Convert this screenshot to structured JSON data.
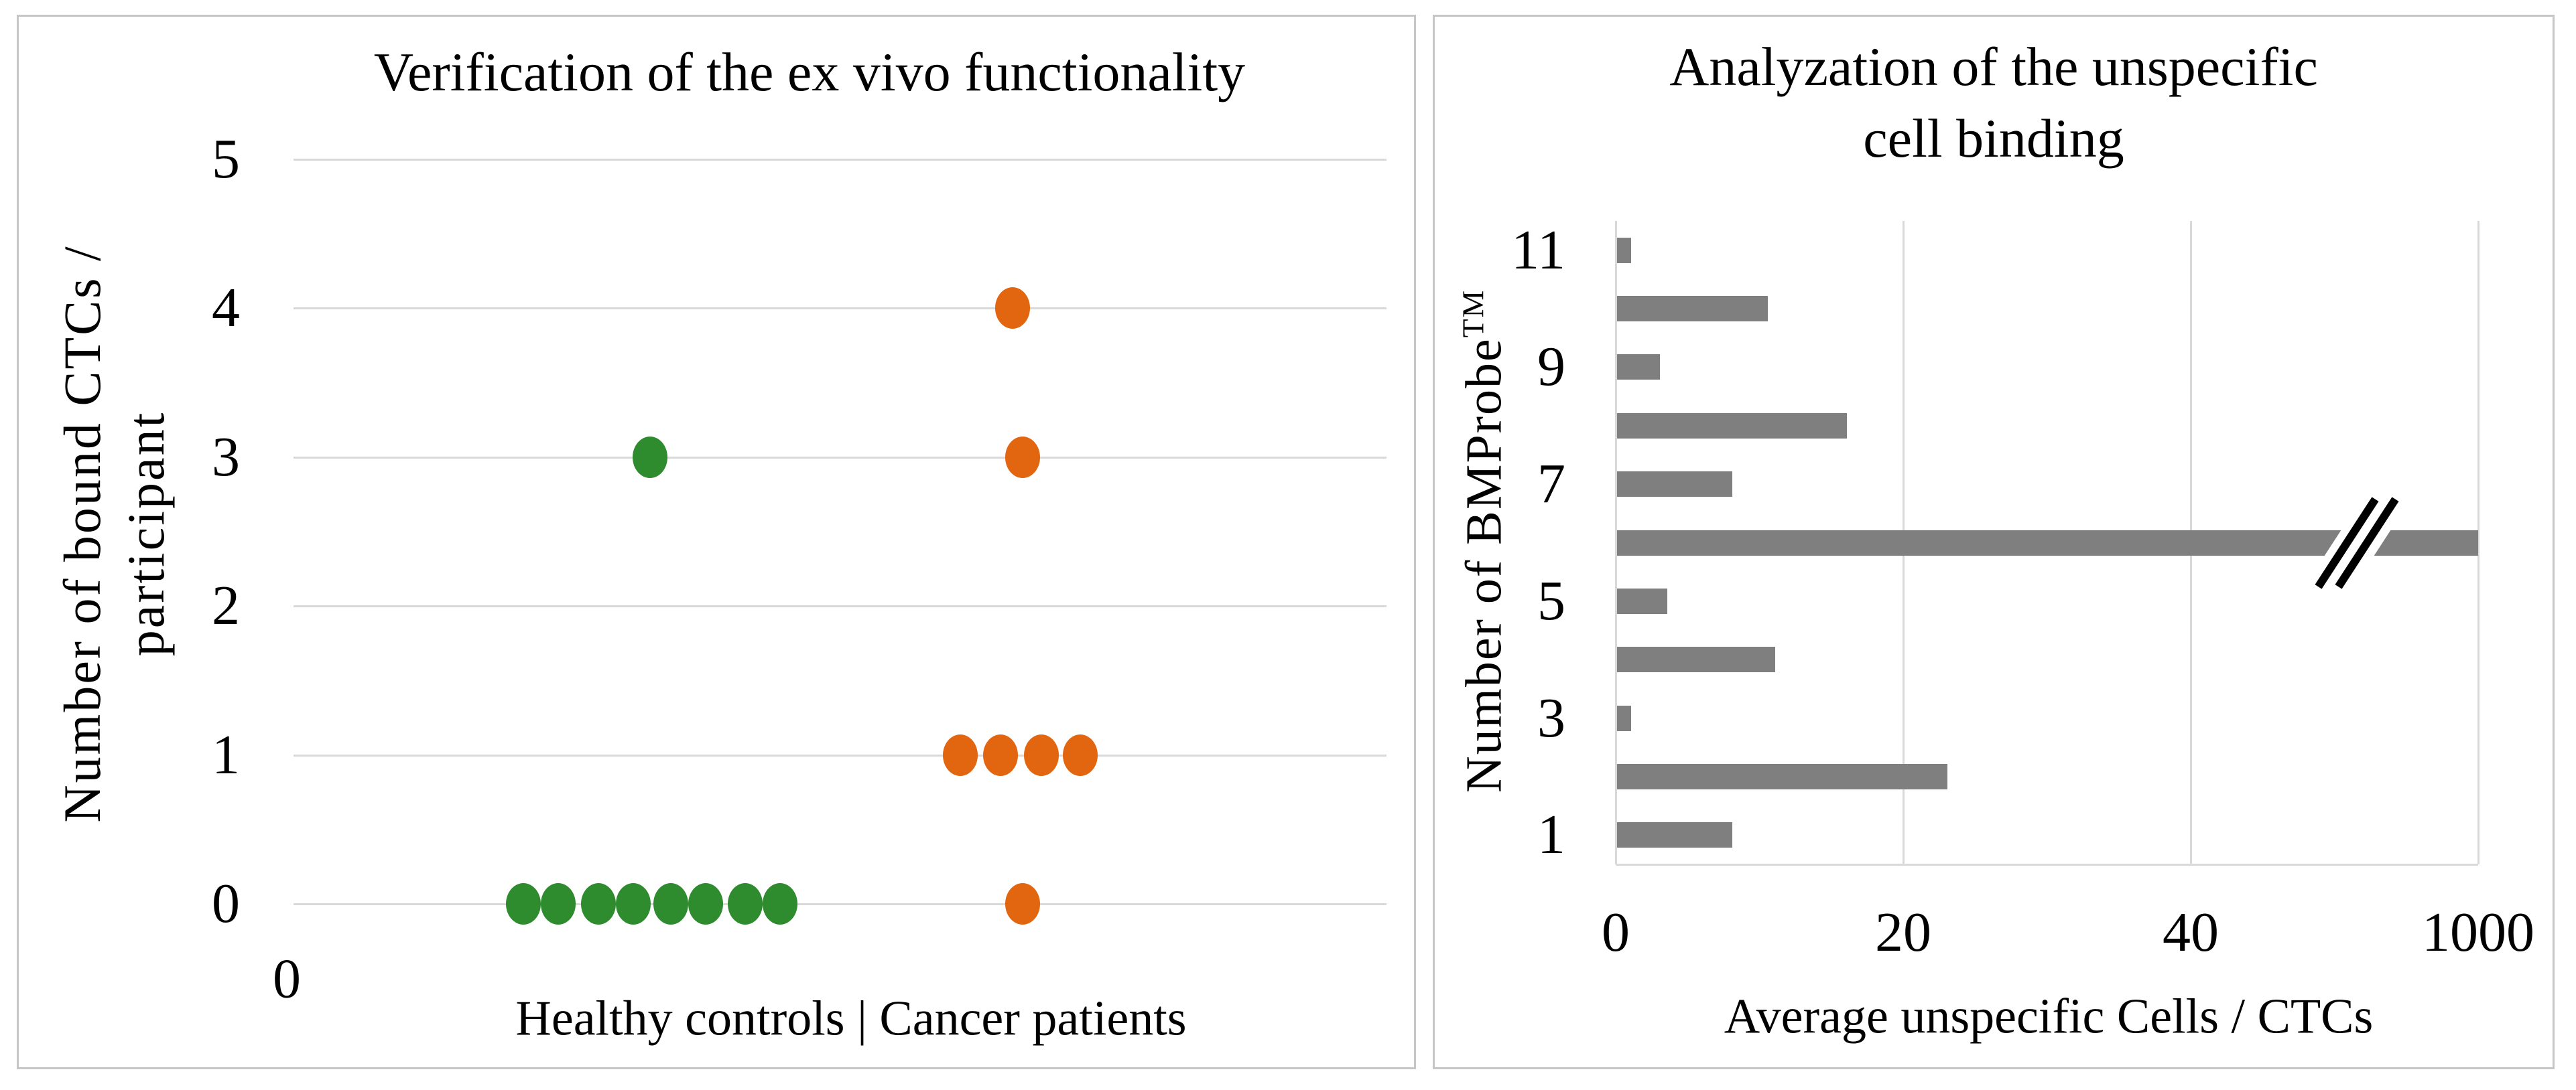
{
  "left_chart": {
    "title": "Verification of the ex vivo functionality",
    "y_axis_title_line1": "Number of bound CTCs /",
    "y_axis_title_line2": "participant",
    "x_axis_title": "Healthy controls | Cancer patients",
    "x_origin_label": "0"
  },
  "right_chart": {
    "title_line1": "Analyzation of the unspecific",
    "title_line2": "cell binding",
    "y_axis_title": "Number of BMProbe",
    "y_axis_title_sup": "TM",
    "x_axis_title": "Average unspecific Cells / CTCs"
  },
  "colors": {
    "healthy_green": "#2e8b2e",
    "cancer_orange": "#e2650f",
    "bar_gray": "#7f7f7f",
    "gridline_gray": "#d9d9d9",
    "panel_border": "#c6c6c6"
  },
  "chart_data": [
    {
      "type": "scatter",
      "title": "Verification of the ex vivo functionality",
      "xlabel": "Healthy controls | Cancer patients",
      "ylabel": "Number of bound CTCs / participant",
      "ylim": [
        0,
        5
      ],
      "y_ticks": [
        5,
        4,
        3,
        2,
        1,
        0
      ],
      "x_origin_tick": "0",
      "grid": "horizontal",
      "legend": "none",
      "series": [
        {
          "name": "Healthy controls",
          "color": "#2e8b2e",
          "points": [
            {
              "fx": 0.21,
              "y": 0
            },
            {
              "fx": 0.242,
              "y": 0
            },
            {
              "fx": 0.279,
              "y": 0
            },
            {
              "fx": 0.311,
              "y": 0
            },
            {
              "fx": 0.345,
              "y": 0
            },
            {
              "fx": 0.377,
              "y": 0
            },
            {
              "fx": 0.413,
              "y": 0
            },
            {
              "fx": 0.445,
              "y": 0
            },
            {
              "fx": 0.326,
              "y": 3
            }
          ]
        },
        {
          "name": "Cancer patients",
          "color": "#e2650f",
          "points": [
            {
              "fx": 0.658,
              "y": 4
            },
            {
              "fx": 0.667,
              "y": 3
            },
            {
              "fx": 0.61,
              "y": 1
            },
            {
              "fx": 0.647,
              "y": 1
            },
            {
              "fx": 0.684,
              "y": 1
            },
            {
              "fx": 0.72,
              "y": 1
            },
            {
              "fx": 0.667,
              "y": 0
            }
          ]
        }
      ]
    },
    {
      "type": "bar",
      "orientation": "horizontal",
      "title": "Analyzation of the unspecific cell binding",
      "xlabel": "Average unspecific Cells / CTCs",
      "ylabel": "Number of BMProbe™",
      "x_ticks": [
        "0",
        "20",
        "40",
        "1000"
      ],
      "x_axis_break_between": [
        40,
        1000
      ],
      "y_ticks_shown": [
        11,
        9,
        7,
        5,
        3,
        1
      ],
      "grid": "vertical",
      "bar_color": "#7f7f7f",
      "bars": [
        {
          "category": 11,
          "value": 1
        },
        {
          "category": 10,
          "value": 10.5
        },
        {
          "category": 9,
          "value": 3
        },
        {
          "category": 8,
          "value": 16
        },
        {
          "category": 7,
          "value": 8
        },
        {
          "category": 6,
          "value": 1000,
          "axis_break": true
        },
        {
          "category": 5,
          "value": 3.5
        },
        {
          "category": 4,
          "value": 11
        },
        {
          "category": 3,
          "value": 1
        },
        {
          "category": 2,
          "value": 23
        },
        {
          "category": 1,
          "value": 8
        }
      ]
    }
  ]
}
